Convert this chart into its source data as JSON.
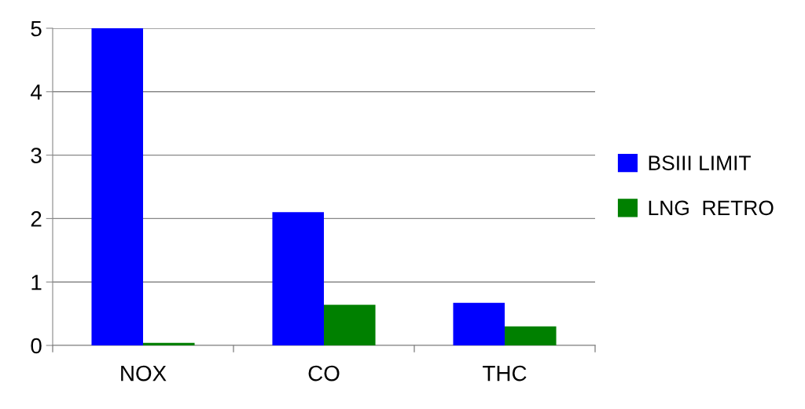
{
  "chart_data": {
    "type": "bar",
    "categories": [
      "NOX",
      "CO",
      "THC"
    ],
    "series": [
      {
        "name": "BSIII LIMIT",
        "color": "#0000ff",
        "values": [
          5,
          2.1,
          0.67
        ]
      },
      {
        "name": "LNG  RETRO",
        "color": "#008000",
        "values": [
          0.04,
          0.64,
          0.3
        ]
      }
    ],
    "ylim": [
      0,
      5
    ],
    "yticks": [
      0,
      1,
      2,
      3,
      4,
      5
    ],
    "grid": "y",
    "legend": "right"
  }
}
